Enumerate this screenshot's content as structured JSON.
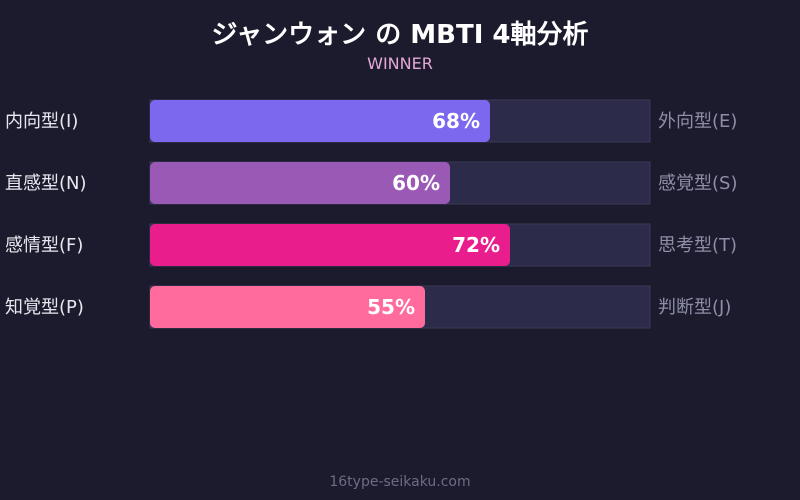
{
  "title": "ジャンウォン の MBTI 4軸分析",
  "subtitle": "WINNER",
  "footer": "16type-seikaku.com",
  "chart_data": {
    "type": "bar",
    "orientation": "horizontal",
    "xlim": [
      0,
      100
    ],
    "grid": false,
    "rows": [
      {
        "left_label": "内向型(I)",
        "right_label": "外向型(E)",
        "value": 68,
        "value_label": "68%",
        "color": "#7b68ee"
      },
      {
        "left_label": "直感型(N)",
        "right_label": "感覚型(S)",
        "value": 60,
        "value_label": "60%",
        "color": "#9b59b6"
      },
      {
        "left_label": "感情型(F)",
        "right_label": "思考型(T)",
        "value": 72,
        "value_label": "72%",
        "color": "#e91e8c"
      },
      {
        "left_label": "知覚型(P)",
        "right_label": "判断型(J)",
        "value": 55,
        "value_label": "55%",
        "color": "#ff6b9d"
      }
    ],
    "track_color": "#2d2b4a"
  }
}
